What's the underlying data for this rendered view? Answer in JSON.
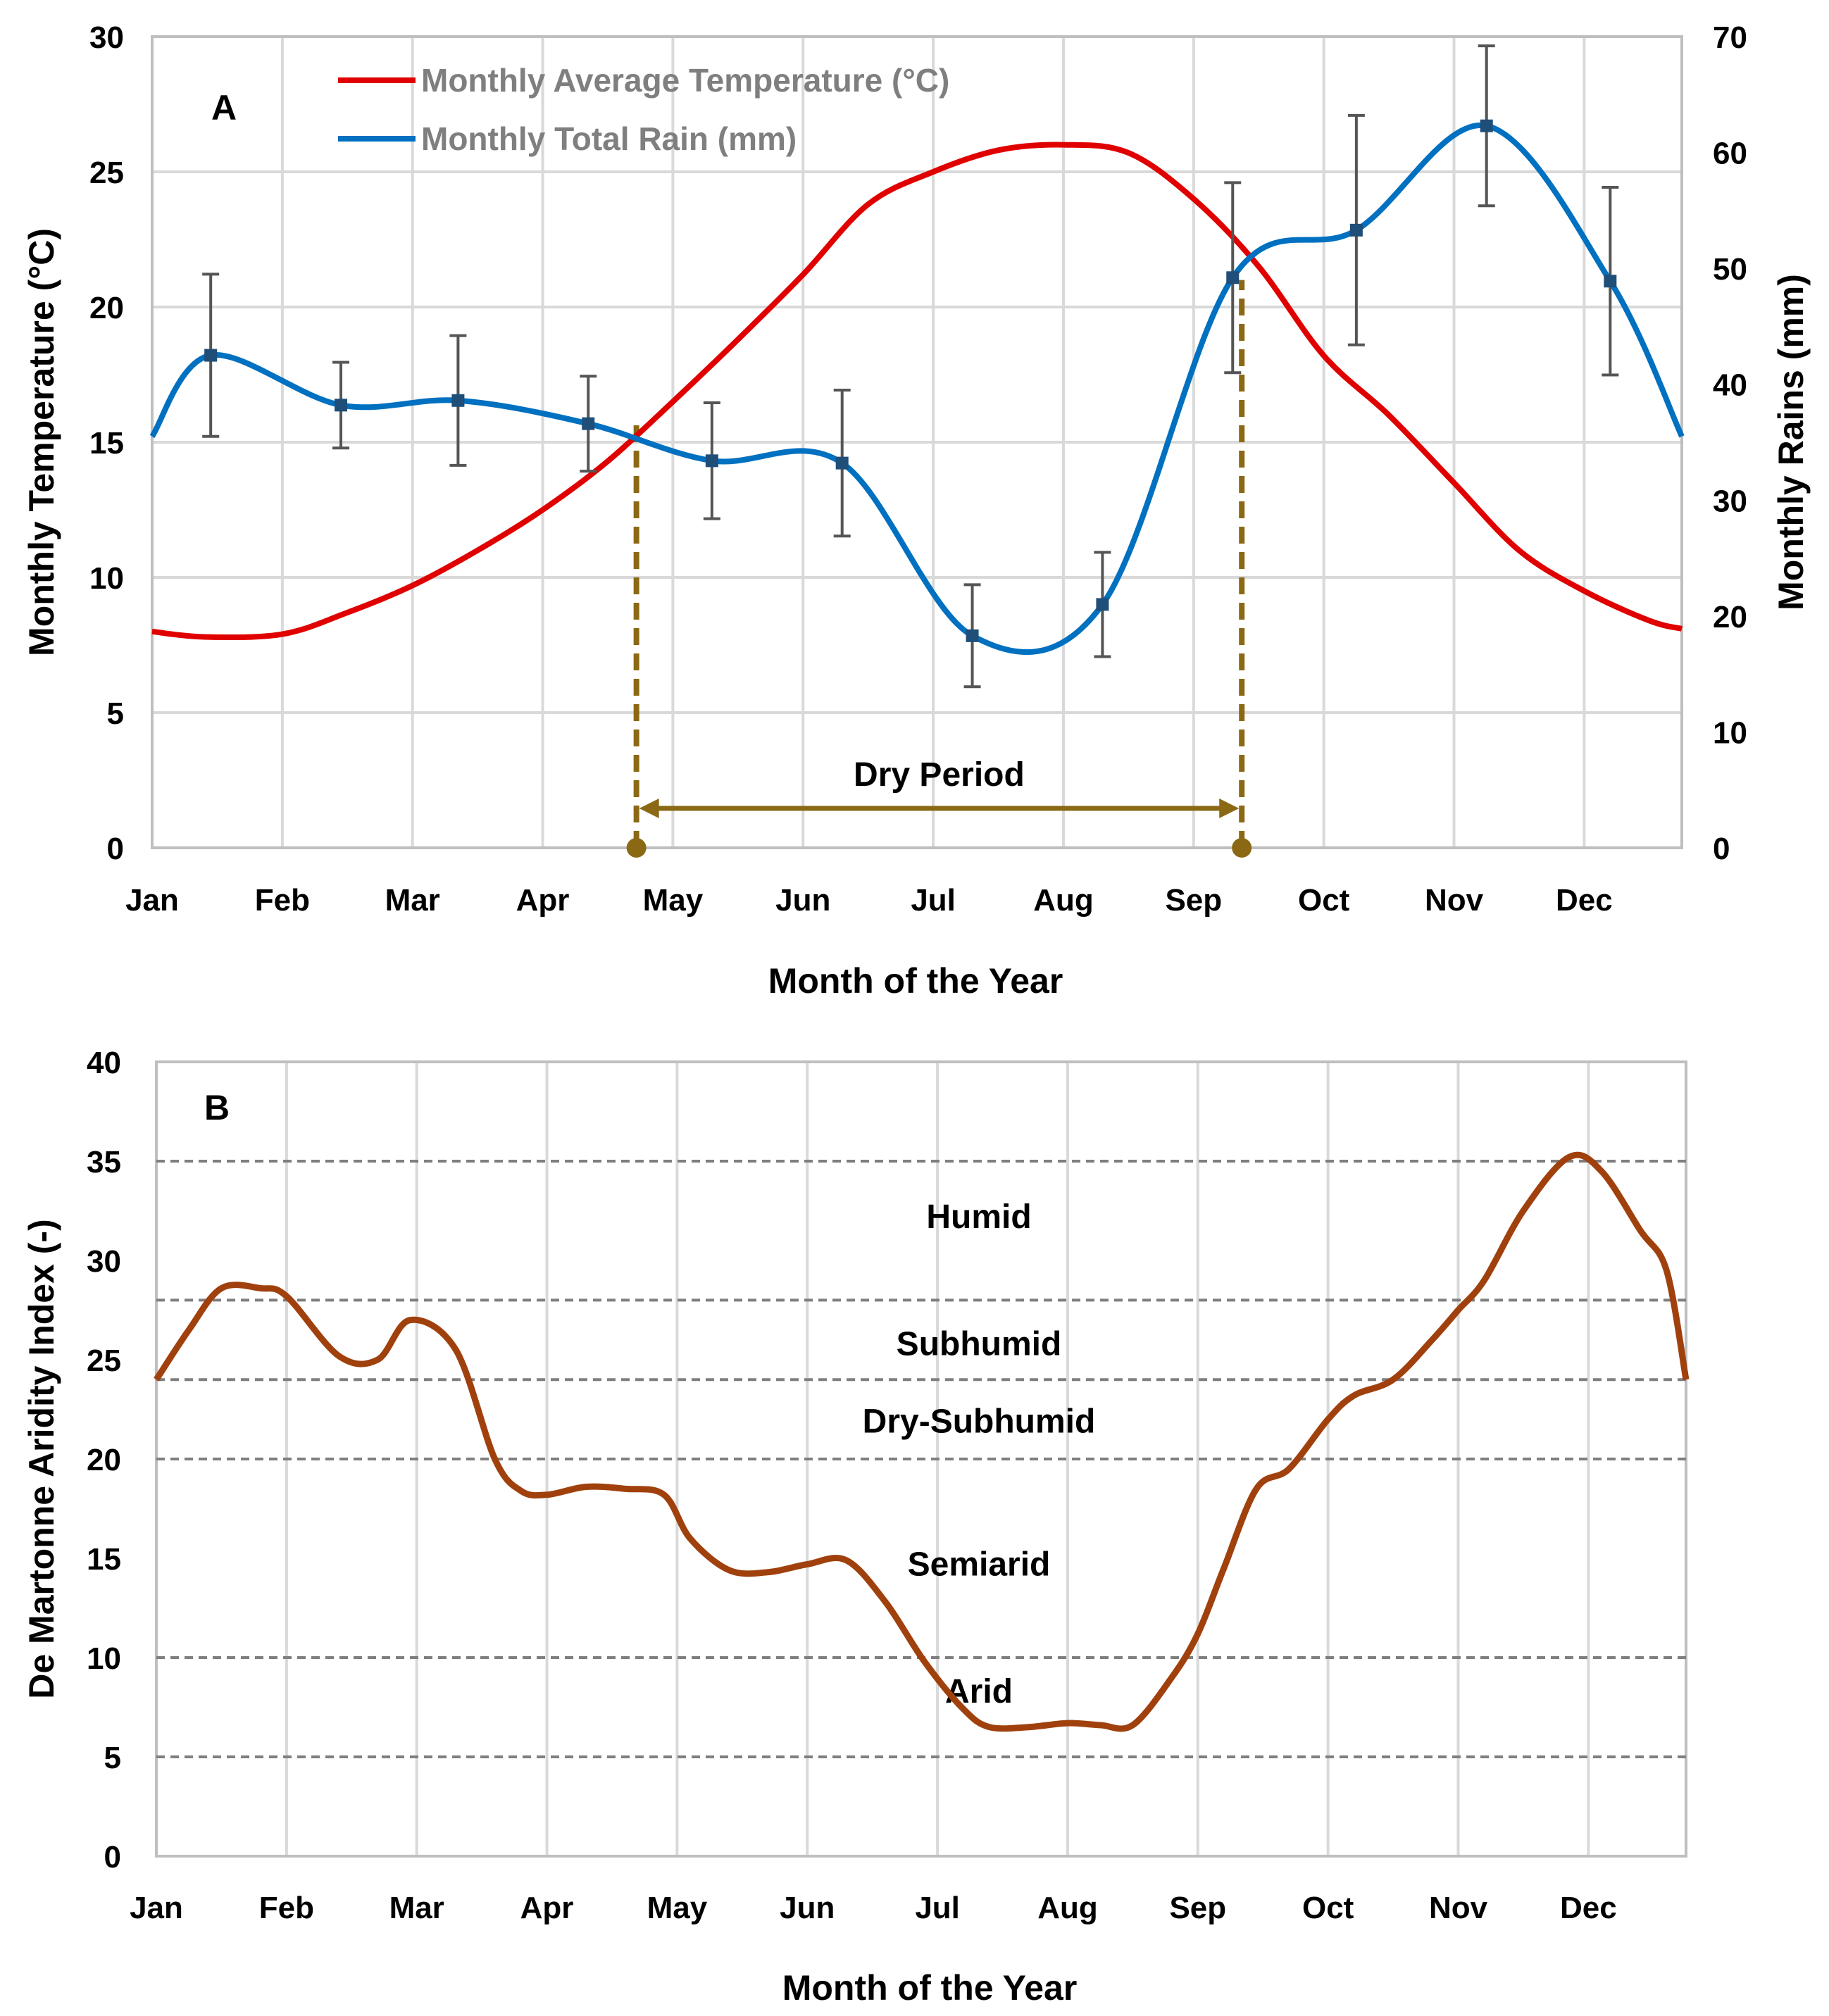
{
  "chart_data": [
    {
      "panel": "A",
      "type": "line",
      "xlabel": "Month of the Year",
      "ylabel": "Monthly Temperature (°C)",
      "y2label": "Monthly Rains (mm)",
      "ylim": [
        0,
        30
      ],
      "y2lim": [
        0,
        70
      ],
      "yticks": [
        0,
        5,
        10,
        15,
        20,
        25,
        30
      ],
      "y2ticks": [
        0,
        10,
        20,
        30,
        40,
        50,
        60,
        70
      ],
      "grid": true,
      "legend_position": "top-left",
      "categories": [
        "Jan",
        "Feb",
        "Mar",
        "Apr",
        "May",
        "Jun",
        "Jul",
        "Aug",
        "Sep",
        "Oct",
        "Nov",
        "Dec"
      ],
      "series": [
        {
          "name": "Monthly Average Temperature (°C)",
          "axis": "left",
          "color": "#e00000",
          "x": [
            0,
            0.4,
            1,
            1.5,
            2,
            2.5,
            3,
            3.5,
            4,
            4.5,
            5,
            5.5,
            6,
            6.5,
            7,
            7.5,
            8,
            8.5,
            9,
            9.5,
            10,
            10.5,
            11,
            11.5,
            11.75
          ],
          "values": [
            8.0,
            7.8,
            7.9,
            8.7,
            9.7,
            11.0,
            12.5,
            14.3,
            16.5,
            18.8,
            21.2,
            23.8,
            25.0,
            25.8,
            26.0,
            25.7,
            24.0,
            21.5,
            18.2,
            16.0,
            13.5,
            11.0,
            9.5,
            8.4,
            8.1
          ]
        },
        {
          "name": "Monthly Total Rain (mm)",
          "axis": "right",
          "color": "#0070c0",
          "x": [
            0,
            0.45,
            1.45,
            2.35,
            3.35,
            4.3,
            5.3,
            6.3,
            7.3,
            8.3,
            9.25,
            10.25,
            11.2,
            11.75
          ],
          "values": [
            35.5,
            42.5,
            38.2,
            38.6,
            36.6,
            33.4,
            33.2,
            18.3,
            21.0,
            49.2,
            53.3,
            62.3,
            48.9,
            35.5
          ],
          "error_bars": [
            null,
            7.0,
            3.7,
            5.6,
            4.1,
            5.0,
            6.3,
            4.4,
            4.5,
            8.2,
            9.9,
            6.9,
            8.1,
            null
          ]
        }
      ],
      "dry_period": {
        "label": "Dry Period",
        "start_x": 3.72,
        "end_x": 8.37,
        "color": "#8b6914"
      },
      "panel_label": "A"
    },
    {
      "panel": "B",
      "type": "line",
      "xlabel": "Month of the Year",
      "ylabel": "De Martonne Aridity Index (-)",
      "ylim": [
        0,
        40
      ],
      "yticks": [
        0,
        5,
        10,
        15,
        20,
        25,
        30,
        35,
        40
      ],
      "grid": "vertical",
      "categories": [
        "Jan",
        "Feb",
        "Mar",
        "Apr",
        "May",
        "Jun",
        "Jul",
        "Aug",
        "Sep",
        "Oct",
        "Nov",
        "Dec"
      ],
      "series": [
        {
          "name": "De Martonne Aridity Index",
          "color": "#a0410d",
          "x": [
            0,
            0.25,
            0.5,
            0.8,
            1.0,
            1.4,
            1.7,
            1.95,
            2.3,
            2.6,
            2.8,
            3.0,
            3.3,
            3.6,
            3.9,
            4.1,
            4.4,
            4.7,
            5.0,
            5.3,
            5.6,
            5.9,
            6.2,
            6.4,
            6.7,
            7.0,
            7.25,
            7.5,
            7.8,
            8.0,
            8.2,
            8.45,
            8.7,
            9.0,
            9.2,
            9.5,
            9.8,
            10.0,
            10.2,
            10.5,
            10.85,
            11.1,
            11.4,
            11.6,
            11.75
          ],
          "values": [
            24,
            26.5,
            28.6,
            28.6,
            28.2,
            25.2,
            25.0,
            27.0,
            25.5,
            20.0,
            18.4,
            18.2,
            18.6,
            18.5,
            18.2,
            16.0,
            14.4,
            14.3,
            14.7,
            14.9,
            12.8,
            9.8,
            7.4,
            6.5,
            6.5,
            6.7,
            6.6,
            6.6,
            9.0,
            11.2,
            14.5,
            18.5,
            19.5,
            22.0,
            23.2,
            24.0,
            26.0,
            27.5,
            29.0,
            32.5,
            35.2,
            34.5,
            31.5,
            29.5,
            24.0
          ]
        }
      ],
      "zones": [
        {
          "y": 35,
          "label": "Humid",
          "label_y": 32.2
        },
        {
          "y": 28,
          "label": "Subhumid",
          "label_y": 25.8
        },
        {
          "y": 24,
          "label": "Dry-Subhumid",
          "label_y": 21.9
        },
        {
          "y": 20,
          "label": "Semiarid",
          "label_y": 14.7
        },
        {
          "y": 10,
          "label": "Arid",
          "label_y": 8.3
        },
        {
          "y": 5,
          "label": "",
          "label_y": null
        }
      ],
      "panel_label": "B"
    }
  ]
}
